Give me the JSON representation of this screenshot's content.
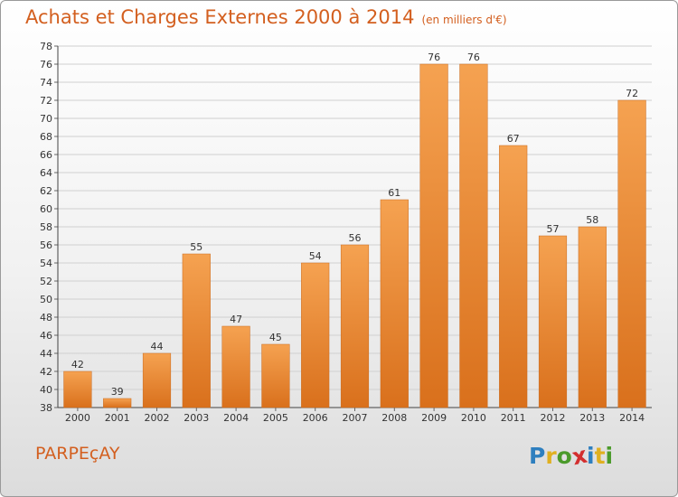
{
  "header": {
    "title": "Achats et Charges Externes 2000 à 2014",
    "unit": "(en milliers d'€)"
  },
  "footer": {
    "commune": "PARPEçAY"
  },
  "logo": {
    "text": "Proxiti",
    "letters": [
      {
        "char": "P",
        "color": "#2e7fbf"
      },
      {
        "char": "r",
        "color": "#e0b020"
      },
      {
        "char": "o",
        "color": "#4a9a2a"
      },
      {
        "char": "x",
        "color": "#d32f2f"
      },
      {
        "char": "i",
        "color": "#2e7fbf"
      },
      {
        "char": "t",
        "color": "#e0b020"
      },
      {
        "char": "i",
        "color": "#4a9a2a"
      }
    ]
  },
  "colors": {
    "accent": "#d35f1f",
    "bar_top": "#f5a251",
    "bar_bottom": "#d9701c",
    "grid": "#d0d0d0"
  },
  "chart_data": {
    "type": "bar",
    "title": "Achats et Charges Externes 2000 à 2014",
    "subtitle": "(en milliers d'€)",
    "xlabel": "",
    "ylabel": "",
    "categories": [
      "2000",
      "2001",
      "2002",
      "2003",
      "2004",
      "2005",
      "2006",
      "2007",
      "2008",
      "2009",
      "2010",
      "2011",
      "2012",
      "2013",
      "2014"
    ],
    "values": [
      42,
      39,
      44,
      55,
      47,
      45,
      54,
      56,
      61,
      76,
      76,
      67,
      57,
      58,
      72
    ],
    "ylim": [
      38,
      78
    ],
    "ytick_step": 2,
    "grid": true,
    "legend": "none",
    "data_labels": true
  }
}
